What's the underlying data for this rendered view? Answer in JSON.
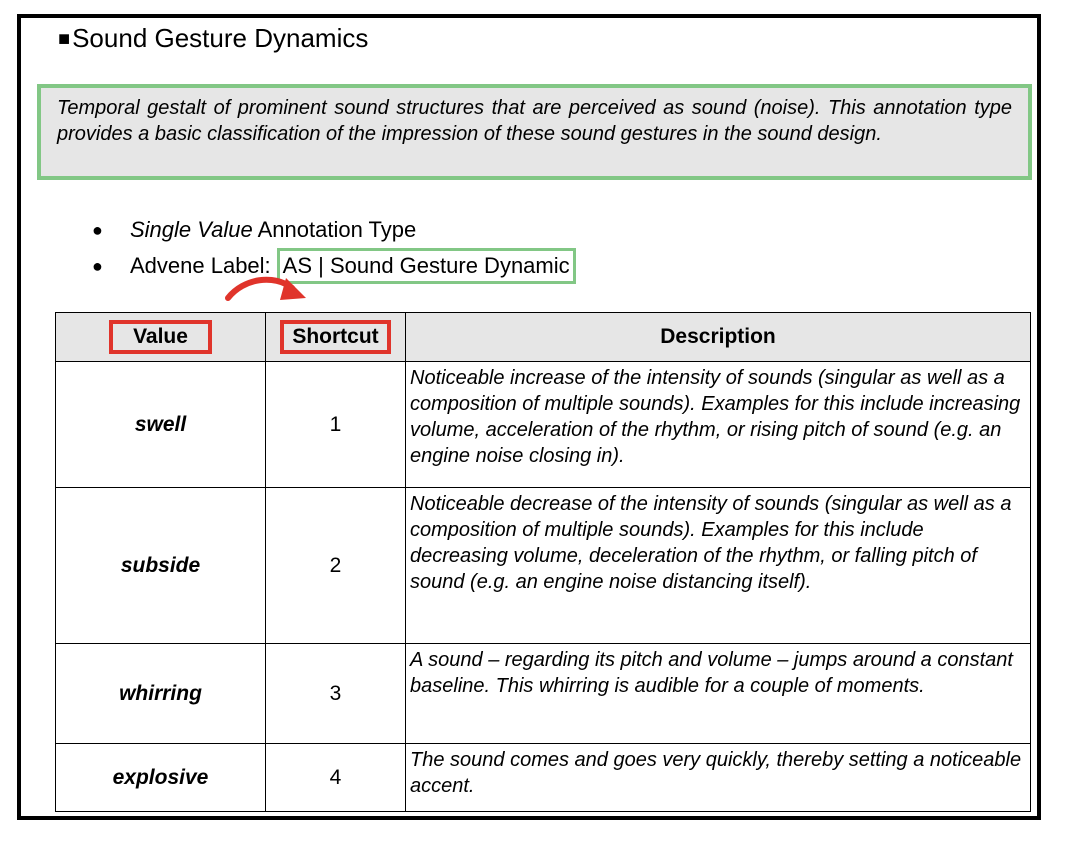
{
  "heading": {
    "marker": "■",
    "title": "Sound Gesture Dynamics"
  },
  "description": "Temporal gestalt of prominent sound structures that are perceived as sound (noise). This annotation type provides a basic classification of the impression of these sound gestures in the sound design.",
  "bullets": {
    "item1_italic": "Single Value",
    "item1_rest": " Annotation Type",
    "item2_prefix": "Advene Label:",
    "item2_label": "AS | Sound Gesture Dynamic"
  },
  "table": {
    "headers": {
      "value": "Value",
      "shortcut": "Shortcut",
      "description": "Description"
    },
    "rows": [
      {
        "value": "swell",
        "shortcut": "1",
        "description": "Noticeable increase of the intensity of sounds (singular as well as a composition of multiple sounds). Examples for this include increasing volume, acceleration of the rhythm, or rising pitch of sound (e.g. an engine noise closing in)."
      },
      {
        "value": "subside",
        "shortcut": "2",
        "description": "Noticeable decrease of the intensity of sounds (singular as well as a composition of multiple sounds). Examples for this include decreasing volume, deceleration of the rhythm, or falling pitch of sound (e.g. an engine noise distancing itself)."
      },
      {
        "value": "whirring",
        "shortcut": "3",
        "description": "A sound – regarding its pitch and volume – jumps around a constant baseline. This whirring is audible for a couple of moments."
      },
      {
        "value": "explosive",
        "shortcut": "4",
        "description": "The sound comes and goes very quickly, thereby setting a noticeable accent."
      }
    ]
  },
  "colors": {
    "highlight_green": "#82c785",
    "highlight_red": "#e0342b",
    "box_gray": "#e6e6e6"
  }
}
